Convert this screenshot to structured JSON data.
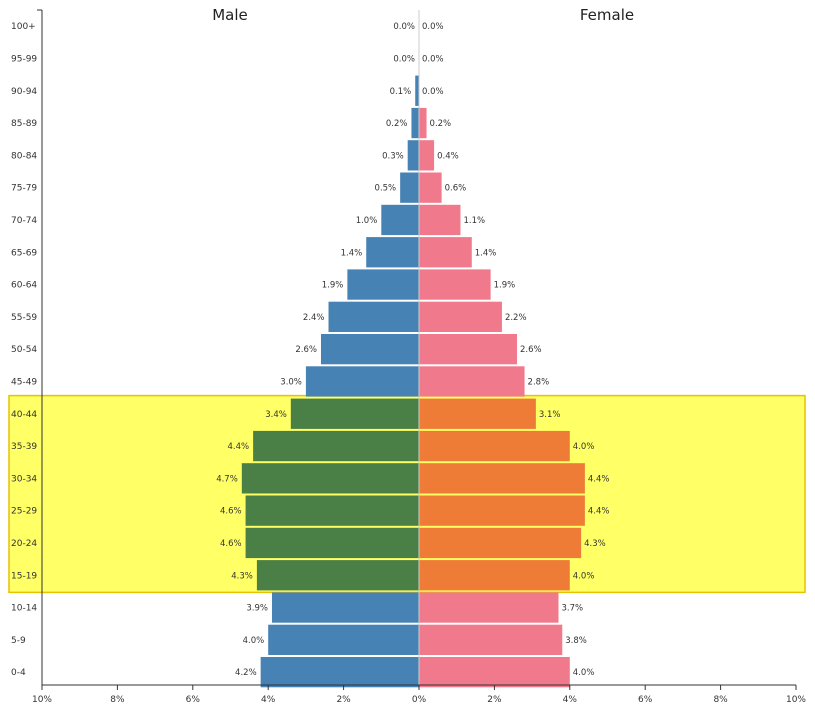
{
  "chart_data": {
    "type": "bar",
    "orientation": "horizontal-population-pyramid",
    "male_title": "Male",
    "female_title": "Female",
    "categories": [
      "100+",
      "95-99",
      "90-94",
      "85-89",
      "80-84",
      "75-79",
      "70-74",
      "65-69",
      "60-64",
      "55-59",
      "50-54",
      "45-49",
      "40-44",
      "35-39",
      "30-34",
      "25-29",
      "20-24",
      "15-19",
      "10-14",
      "5-9",
      "0-4"
    ],
    "series": [
      {
        "name": "Male",
        "values": [
          0.0,
          0.0,
          0.1,
          0.2,
          0.3,
          0.5,
          1.0,
          1.4,
          1.9,
          2.4,
          2.6,
          3.0,
          3.4,
          4.4,
          4.7,
          4.6,
          4.6,
          4.3,
          3.9,
          4.0,
          4.2
        ]
      },
      {
        "name": "Female",
        "values": [
          0.0,
          0.0,
          0.0,
          0.2,
          0.4,
          0.6,
          1.1,
          1.4,
          1.9,
          2.2,
          2.6,
          2.8,
          3.1,
          4.0,
          4.4,
          4.4,
          4.3,
          4.0,
          3.7,
          3.8,
          4.0
        ]
      }
    ],
    "value_labels": {
      "male": [
        "0.0%",
        "0.0%",
        "0.1%",
        "0.2%",
        "0.3%",
        "0.5%",
        "1.0%",
        "1.4%",
        "1.9%",
        "2.4%",
        "2.6%",
        "3.0%",
        "3.4%",
        "4.4%",
        "4.7%",
        "4.6%",
        "4.6%",
        "4.3%",
        "3.9%",
        "4.0%",
        "4.2%"
      ],
      "female": [
        "0.0%",
        "0.0%",
        "0.0%",
        "0.2%",
        "0.4%",
        "0.6%",
        "1.1%",
        "1.4%",
        "1.9%",
        "2.2%",
        "2.6%",
        "2.8%",
        "3.1%",
        "4.0%",
        "4.4%",
        "4.4%",
        "4.3%",
        "4.0%",
        "3.7%",
        "3.8%",
        "4.0%"
      ]
    },
    "x_ticks": [
      "10%",
      "8%",
      "6%",
      "4%",
      "2%",
      "0%",
      "2%",
      "4%",
      "6%",
      "8%",
      "10%"
    ],
    "xlim": [
      -10,
      10
    ],
    "highlight": {
      "from": "15-19",
      "to": "40-44"
    },
    "colors": {
      "male": "#4682b4",
      "female": "#f07a8c",
      "male_highlight": "#4a7f45",
      "female_highlight": "#ee7c36",
      "highlight_fill": "#ffff66",
      "highlight_stroke": "#e6c200"
    },
    "grid": false
  }
}
